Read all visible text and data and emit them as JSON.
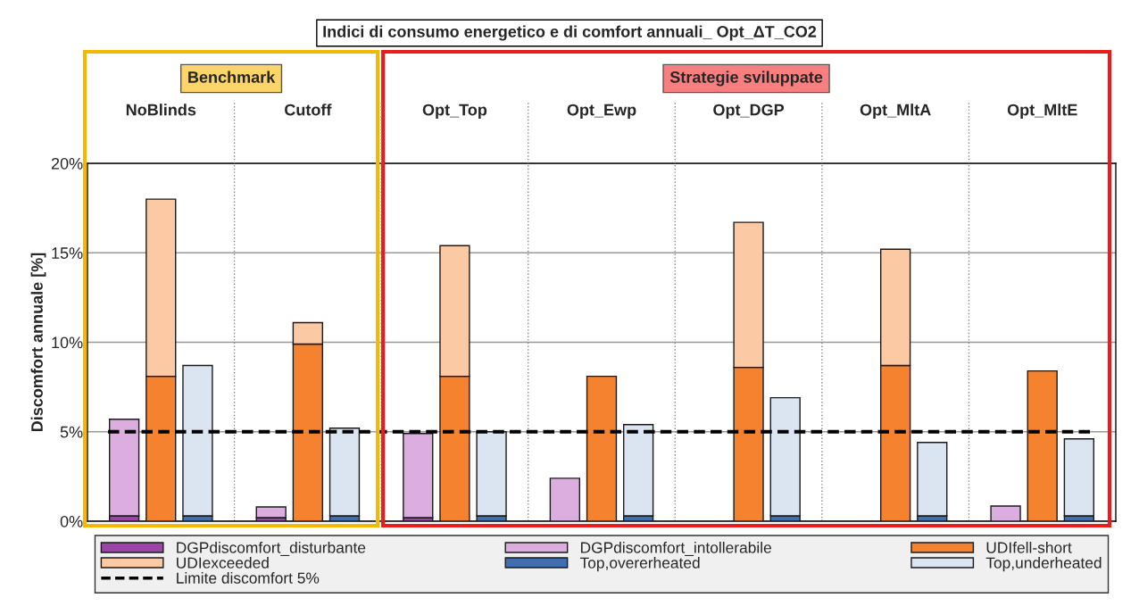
{
  "chart_data": {
    "type": "bar",
    "title": "Indici di consumo energetico e di comfort annuali_ Opt_ΔT_CO2",
    "ylabel": "Discomfort annuale [%]",
    "categories": [
      null,
      "NoBlinds",
      null,
      null,
      "Cutoff",
      null,
      null,
      "Opt_Top",
      null,
      null,
      "Opt_Ewp",
      null,
      null,
      "Opt_DGP",
      null,
      null,
      "Opt_MltA",
      null,
      null,
      "Opt_MltE",
      null
    ],
    "stacked": true,
    "series": [
      {
        "name": "DGPdiscomfort_disturbante",
        "color": "#9b45a8",
        "values": [
          0.3,
          null,
          null,
          0.2,
          null,
          null,
          0.2,
          null,
          null,
          null,
          null,
          null,
          null,
          null,
          null,
          null,
          null,
          null,
          null,
          null,
          null
        ]
      },
      {
        "name": "DGPdiscomfort_intollerabile",
        "color": "#dcaee0",
        "values": [
          5.4,
          null,
          null,
          0.6,
          null,
          null,
          4.7,
          null,
          null,
          2.4,
          null,
          null,
          null,
          null,
          null,
          null,
          null,
          null,
          0.85,
          null,
          null
        ]
      },
      {
        "name": "UDIfell-short",
        "color": "#f5822e",
        "values": [
          null,
          8.1,
          null,
          null,
          9.9,
          null,
          null,
          8.1,
          null,
          null,
          8.1,
          null,
          null,
          8.6,
          null,
          null,
          8.7,
          null,
          null,
          8.4,
          null
        ]
      },
      {
        "name": "UDIexceeded",
        "color": "#fbc9a4",
        "values": [
          null,
          9.9,
          null,
          null,
          1.2,
          null,
          null,
          7.3,
          null,
          null,
          null,
          null,
          null,
          8.1,
          null,
          null,
          6.5,
          null,
          null,
          null,
          null
        ]
      },
      {
        "name": "Top,overerheated",
        "color": "#3f6fae",
        "values": [
          null,
          null,
          0.3,
          null,
          null,
          0.3,
          null,
          null,
          0.3,
          null,
          null,
          0.3,
          null,
          null,
          0.3,
          null,
          null,
          0.3,
          null,
          null,
          0.3
        ]
      },
      {
        "name": "Top,underheated",
        "color": "#dbe4f1",
        "values": [
          null,
          null,
          8.4,
          null,
          null,
          4.9,
          null,
          null,
          4.7,
          null,
          null,
          5.1,
          null,
          null,
          6.6,
          null,
          null,
          4.1,
          null,
          null,
          4.3
        ]
      }
    ],
    "ref_lines": [
      {
        "axis": "y",
        "value": 5,
        "label": "Limite discomfort 5%",
        "color": "#000000",
        "line_style": "dashed"
      }
    ],
    "ylim": [
      0,
      20
    ],
    "yticks": [
      {
        "value": 0,
        "label": "0%"
      },
      {
        "value": 5,
        "label": "5%"
      },
      {
        "value": 10,
        "label": "10%"
      },
      {
        "value": 15,
        "label": "15%"
      },
      {
        "value": 20,
        "label": "20%"
      }
    ],
    "grid": "y",
    "legend": "bottom",
    "annotations": [
      "Benchmark",
      "Strategie sviluppate"
    ]
  }
}
